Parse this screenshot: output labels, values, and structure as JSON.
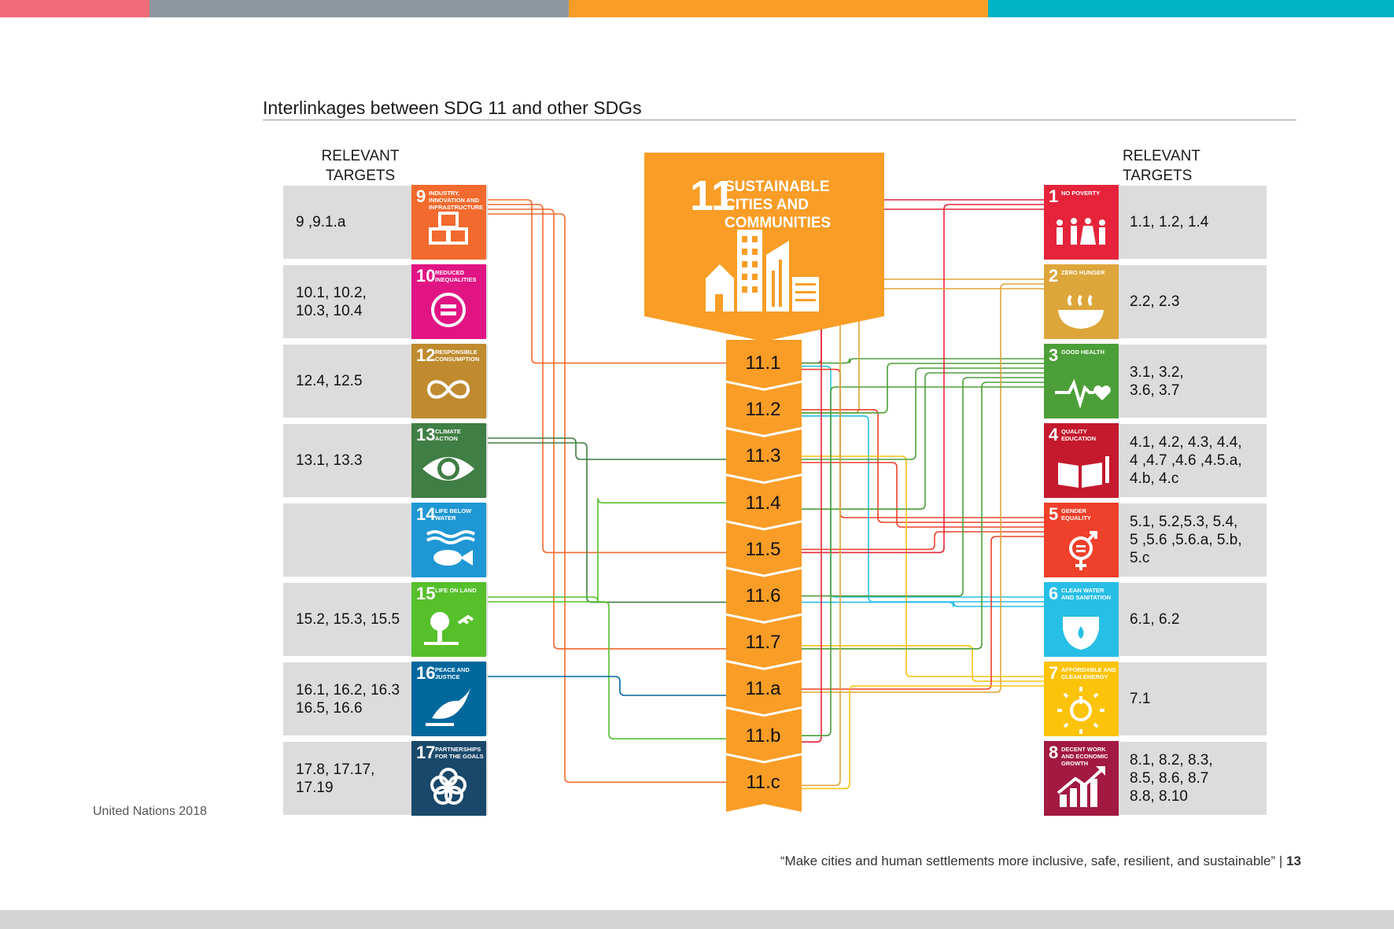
{
  "title": "Interlinkages between SDG 11 and other SDGs",
  "left_header": "RELEVANT TARGETS",
  "right_header": "RELEVANT TARGETS",
  "central_goal": {
    "number": "11",
    "label": "Sustainable cities and communities",
    "color": "#F99D26"
  },
  "central_targets": [
    "11.1",
    "11.2",
    "11.3",
    "11.4",
    "11.5",
    "11.6",
    "11.7",
    "11.a",
    "11.b",
    "11.c"
  ],
  "left_goals": [
    {
      "number": "9",
      "label": "Industry, innovation and infrastructure",
      "color": "#F26A2D",
      "icon": "cubes-icon",
      "targets_line1": "9 ,9.1.a",
      "targets_line2": "",
      "targets_line3": ""
    },
    {
      "number": "10",
      "label": "Reduced inequalities",
      "color": "#E11484",
      "icon": "equality-icon",
      "targets_line1": "10.1, 10.2,",
      "targets_line2": "10.3, 10.4",
      "targets_line3": ""
    },
    {
      "number": "12",
      "label": "Responsible consumption",
      "color": "#BF8B2E",
      "icon": "infinity-icon",
      "targets_line1": "12.4, 12.5",
      "targets_line2": "",
      "targets_line3": ""
    },
    {
      "number": "13",
      "label": "Climate action",
      "color": "#3F7E44",
      "icon": "eye-globe-icon",
      "targets_line1": "13.1, 13.3",
      "targets_line2": "",
      "targets_line3": ""
    },
    {
      "number": "14",
      "label": "Life below water",
      "color": "#1F97D4",
      "icon": "fish-icon",
      "targets_line1": "",
      "targets_line2": "",
      "targets_line3": ""
    },
    {
      "number": "15",
      "label": "Life on land",
      "color": "#56C02B",
      "icon": "tree-icon",
      "targets_line1": "15.2, 15.3, 15.5",
      "targets_line2": "",
      "targets_line3": ""
    },
    {
      "number": "16",
      "label": "Peace and justice",
      "color": "#00689D",
      "icon": "dove-icon",
      "targets_line1": "16.1, 16.2, 16.3",
      "targets_line2": "16.5, 16.6",
      "targets_line3": ""
    },
    {
      "number": "17",
      "label": "Partnerships for the goals",
      "color": "#19486A",
      "icon": "rings-icon",
      "targets_line1": "17.8, 17.17,",
      "targets_line2": "17.19",
      "targets_line3": ""
    }
  ],
  "right_goals": [
    {
      "number": "1",
      "label": "No poverty",
      "color": "#E5243B",
      "icon": "family-icon",
      "targets_line1": "1.1, 1.2, 1.4",
      "targets_line2": "",
      "targets_line3": ""
    },
    {
      "number": "2",
      "label": "Zero hunger",
      "color": "#DDA63A",
      "icon": "bowl-icon",
      "targets_line1": "2.2, 2.3",
      "targets_line2": "",
      "targets_line3": ""
    },
    {
      "number": "3",
      "label": "Good health",
      "color": "#4C9F38",
      "icon": "heartbeat-icon",
      "targets_line1": "3.1, 3.2,",
      "targets_line2": "3.6, 3.7",
      "targets_line3": ""
    },
    {
      "number": "4",
      "label": "Quality education",
      "color": "#C5192D",
      "icon": "book-icon",
      "targets_line1": "4.1, 4.2, 4.3, 4.4,",
      "targets_line2": "4 ,4.7 ,4.6 ,4.5.a,",
      "targets_line3": "4.b, 4.c"
    },
    {
      "number": "5",
      "label": "Gender equality",
      "color": "#EF402B",
      "icon": "gender-icon",
      "targets_line1": "5.1, 5.2,5.3, 5.4,",
      "targets_line2": "5 ,5.6 ,5.6.a, 5.b,",
      "targets_line3": "5.c"
    },
    {
      "number": "6",
      "label": "Clean water and sanitation",
      "color": "#27BFE6",
      "icon": "water-drop-icon",
      "targets_line1": "6.1, 6.2",
      "targets_line2": "",
      "targets_line3": ""
    },
    {
      "number": "7",
      "label": "Affordable and clean energy",
      "color": "#FCC30B",
      "icon": "sun-power-icon",
      "targets_line1": "7.1",
      "targets_line2": "",
      "targets_line3": ""
    },
    {
      "number": "8",
      "label": "Decent work and economic growth",
      "color": "#A21942",
      "icon": "growth-chart-icon",
      "targets_line1": "8.1, 8.2, 8.3,",
      "targets_line2": "8.5, 8.6, 8.7",
      "targets_line3": "8.8, 8.10"
    }
  ],
  "links": [
    {
      "from": "9",
      "to": "11.1"
    },
    {
      "from": "9",
      "to": "11.5"
    },
    {
      "from": "9",
      "to": "11.7"
    },
    {
      "from": "9",
      "to": "11.c"
    },
    {
      "from": "13",
      "to": "11.3"
    },
    {
      "from": "13",
      "to": "11.6"
    },
    {
      "from": "15",
      "to": "11.4"
    },
    {
      "from": "15",
      "to": "11.b"
    },
    {
      "from": "16",
      "to": "11.a"
    },
    {
      "from": "11.1",
      "to": "1"
    },
    {
      "from": "11.1",
      "to": "6"
    },
    {
      "from": "11.1",
      "to": "5"
    },
    {
      "from": "11.1",
      "to": "3"
    },
    {
      "from": "11.2",
      "to": "2"
    },
    {
      "from": "11.2",
      "to": "6"
    },
    {
      "from": "11.2",
      "to": "5"
    },
    {
      "from": "11.2",
      "to": "3"
    },
    {
      "from": "11.3",
      "to": "5"
    },
    {
      "from": "11.3",
      "to": "7"
    },
    {
      "from": "11.3",
      "to": "3"
    },
    {
      "from": "11.4",
      "to": "3"
    },
    {
      "from": "11.5",
      "to": "5"
    },
    {
      "from": "11.5",
      "to": "1"
    },
    {
      "from": "11.6",
      "to": "6"
    },
    {
      "from": "11.6",
      "to": "3"
    },
    {
      "from": "11.7",
      "to": "7"
    },
    {
      "from": "11.7",
      "to": "3"
    },
    {
      "from": "11.a",
      "to": "5"
    },
    {
      "from": "11.a",
      "to": "2"
    },
    {
      "from": "11.b",
      "to": "1"
    },
    {
      "from": "11.b",
      "to": "3"
    },
    {
      "from": "11.c",
      "to": "2"
    },
    {
      "from": "11.c",
      "to": "7"
    }
  ],
  "credit": "United Nations 2018",
  "footer_quote": "“Make cities and human settlements more inclusive, safe, resilient, and sustainable”",
  "footer_sep": "|",
  "page_number": "13",
  "top_bar_colors": [
    "#F26B7B",
    "#8E979E",
    "#F99D26",
    "#00B3C6"
  ]
}
